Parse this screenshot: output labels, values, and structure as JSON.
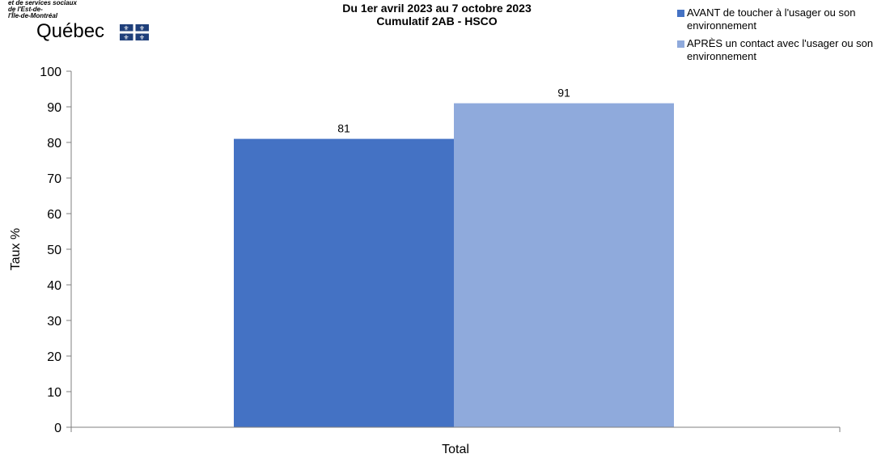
{
  "logo": {
    "lines": [
      "et de services sociaux",
      "de l'Est-de-",
      "l'Île-de-Montréal"
    ],
    "wordmark": "Québec",
    "flag_color": "#1f3f7a"
  },
  "colors": {
    "series_1": "#4472c4",
    "series_2": "#8faadc",
    "axis": "#7f7f7f"
  },
  "chart_data": {
    "type": "bar",
    "title": "Du 1er avril 2023 au 7 octobre 2023",
    "subtitle": "Cumulatif 2AB - HSCO",
    "categories": [
      "Total"
    ],
    "series": [
      {
        "name": "AVANT de toucher à l'usager ou son environnement",
        "values": [
          81
        ]
      },
      {
        "name": "APRÈS un contact avec l'usager ou son environnement",
        "values": [
          91
        ]
      }
    ],
    "xlabel": "",
    "ylabel": "Taux %",
    "ylim": [
      0,
      100
    ],
    "yticks": [
      0,
      10,
      20,
      30,
      40,
      50,
      60,
      70,
      80,
      90,
      100
    ],
    "ytick_labels": [
      "0",
      "10",
      "20",
      "30",
      "40",
      "50",
      "60",
      "70",
      "80",
      "90",
      "100"
    ],
    "data_labels": [
      "81",
      "91"
    ],
    "grid": false,
    "legend_position": "top-right"
  }
}
